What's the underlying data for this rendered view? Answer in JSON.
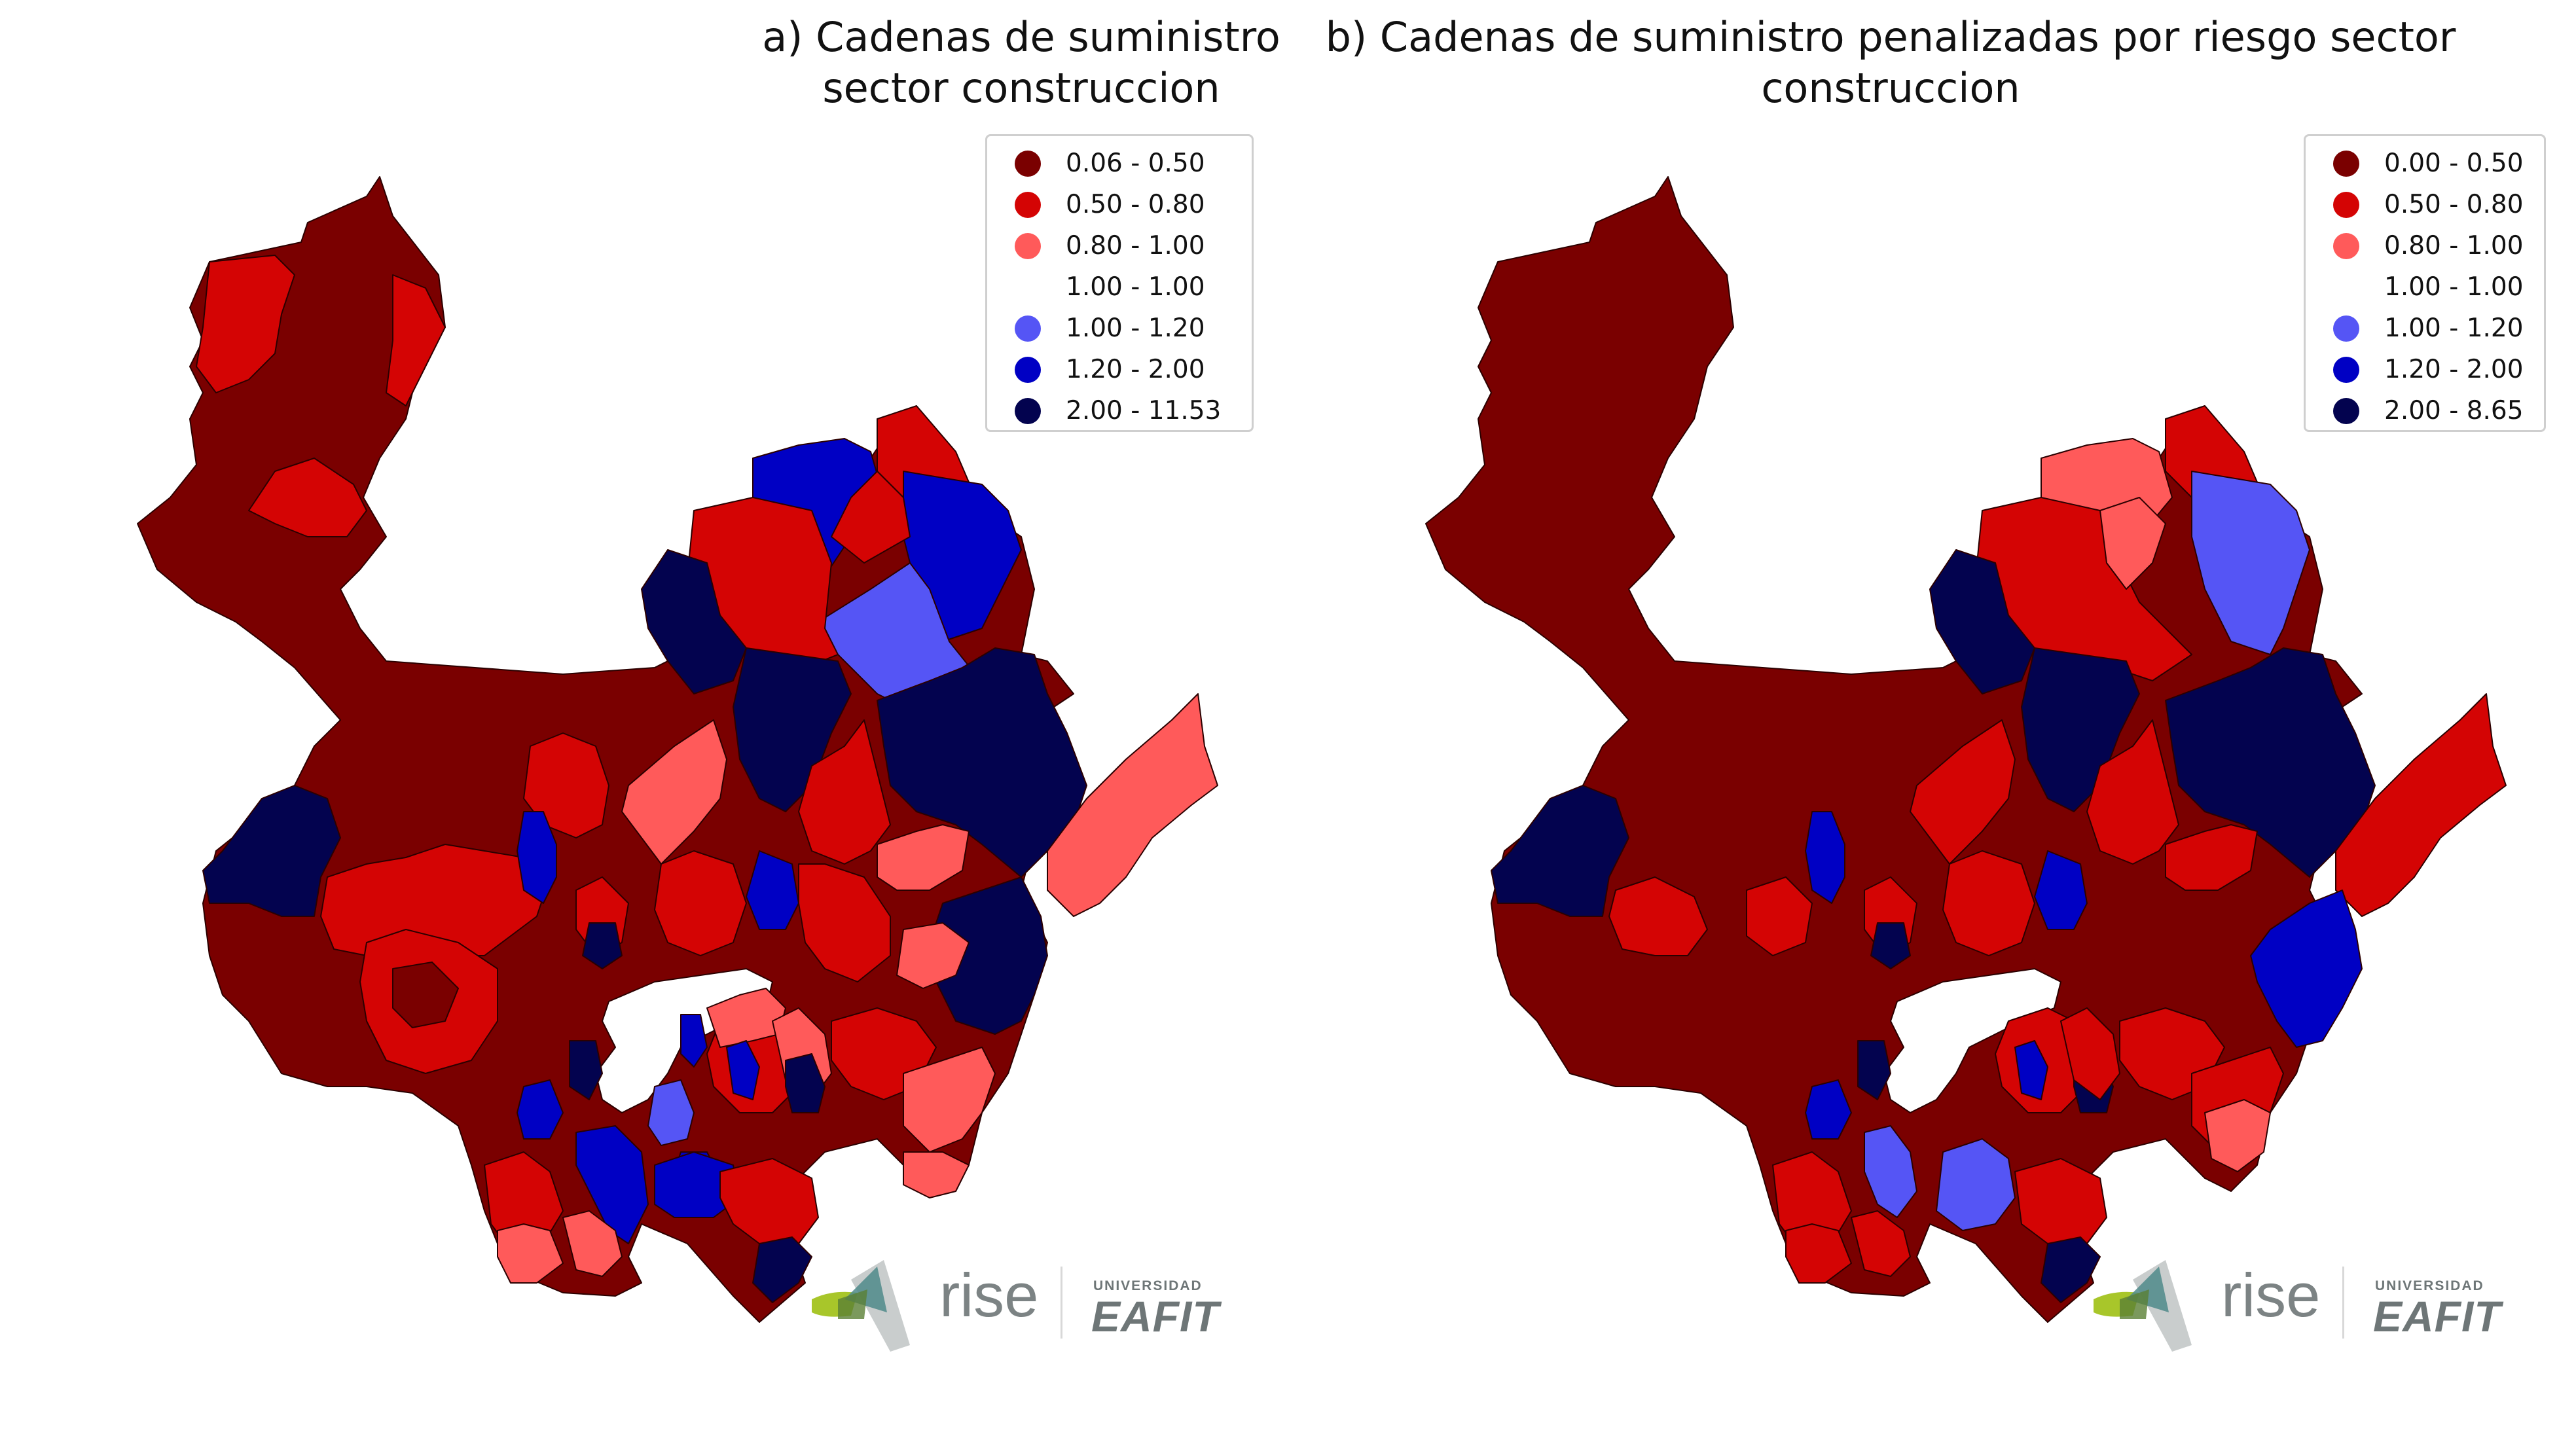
{
  "colors": {
    "class_0": "#7a0000",
    "class_1": "#d40404",
    "class_2": "#ff5a5a",
    "class_3": "#ffffff",
    "class_4": "#5555f5",
    "class_5": "#0000c4",
    "class_6": "#03034f",
    "border": "#2b0000"
  },
  "panels": [
    {
      "title": "a) Cadenas de suministro sector construccion",
      "legend": [
        {
          "label": "0.06 - 0.50",
          "color": "#7a0000"
        },
        {
          "label": "0.50 - 0.80",
          "color": "#d40404"
        },
        {
          "label": "0.80 - 1.00",
          "color": "#ff5a5a"
        },
        {
          "label": "1.00 - 1.00",
          "color": "#ffffff"
        },
        {
          "label": "1.00 - 1.20",
          "color": "#5555f5"
        },
        {
          "label": "1.20 - 2.00",
          "color": "#0000c4"
        },
        {
          "label": "2.00 - 11.53",
          "color": "#03034f"
        }
      ],
      "logo": {
        "rise": "rise",
        "university_small": "UNIVERSIDAD",
        "university_big": "EAFIT"
      }
    },
    {
      "title": "b) Cadenas de suministro penalizadas por riesgo sector construccion",
      "legend": [
        {
          "label": "0.00 - 0.50",
          "color": "#7a0000"
        },
        {
          "label": "0.50 - 0.80",
          "color": "#d40404"
        },
        {
          "label": "0.80 - 1.00",
          "color": "#ff5a5a"
        },
        {
          "label": "1.00 - 1.00",
          "color": "#ffffff"
        },
        {
          "label": "1.00 - 1.20",
          "color": "#5555f5"
        },
        {
          "label": "1.20 - 2.00",
          "color": "#0000c4"
        },
        {
          "label": "2.00 - 8.65",
          "color": "#03034f"
        }
      ],
      "logo": {
        "rise": "rise",
        "university_small": "UNIVERSIDAD",
        "university_big": "EAFIT"
      }
    }
  ]
}
